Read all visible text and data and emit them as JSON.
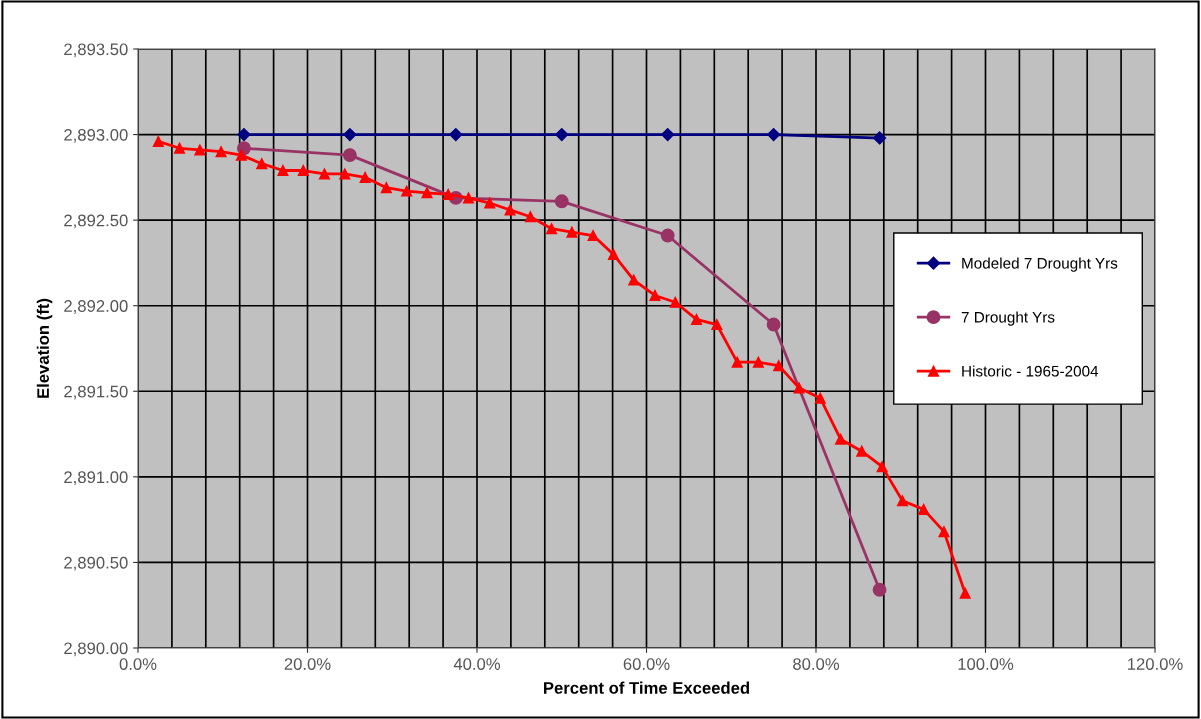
{
  "chart_data": {
    "type": "line",
    "xlabel": "Percent of Time Exceeded",
    "ylabel": "Elevation (ft)",
    "xlim": [
      0,
      120
    ],
    "ylim": [
      2890,
      2893.5
    ],
    "xticks": [
      {
        "value": 0,
        "label": "0.0%"
      },
      {
        "value": 4,
        "label": null
      },
      {
        "value": 8,
        "label": null
      },
      {
        "value": 12,
        "label": null
      },
      {
        "value": 16,
        "label": null
      },
      {
        "value": 20,
        "label": "20.0%"
      },
      {
        "value": 24,
        "label": null
      },
      {
        "value": 28,
        "label": null
      },
      {
        "value": 32,
        "label": null
      },
      {
        "value": 36,
        "label": null
      },
      {
        "value": 40,
        "label": "40.0%"
      },
      {
        "value": 44,
        "label": null
      },
      {
        "value": 48,
        "label": null
      },
      {
        "value": 52,
        "label": null
      },
      {
        "value": 56,
        "label": null
      },
      {
        "value": 60,
        "label": "60.0%"
      },
      {
        "value": 64,
        "label": null
      },
      {
        "value": 68,
        "label": null
      },
      {
        "value": 72,
        "label": null
      },
      {
        "value": 76,
        "label": null
      },
      {
        "value": 80,
        "label": "80.0%"
      },
      {
        "value": 84,
        "label": null
      },
      {
        "value": 88,
        "label": null
      },
      {
        "value": 92,
        "label": null
      },
      {
        "value": 96,
        "label": null
      },
      {
        "value": 100,
        "label": "100.0%"
      },
      {
        "value": 104,
        "label": null
      },
      {
        "value": 108,
        "label": null
      },
      {
        "value": 112,
        "label": null
      },
      {
        "value": 116,
        "label": null
      },
      {
        "value": 120,
        "label": "120.0%"
      }
    ],
    "yticks": [
      {
        "value": 2890,
        "label": "2,890.00"
      },
      {
        "value": 2890.5,
        "label": "2,890.50"
      },
      {
        "value": 2891,
        "label": "2,891.00"
      },
      {
        "value": 2891.5,
        "label": "2,891.50"
      },
      {
        "value": 2892,
        "label": "2,892.00"
      },
      {
        "value": 2892.5,
        "label": "2,892.50"
      },
      {
        "value": 2893,
        "label": "2,893.00"
      },
      {
        "value": 2893.5,
        "label": "2,893.50"
      }
    ],
    "grid": true,
    "legend": "right",
    "line_style": "solid",
    "series": [
      {
        "name": "Modeled 7 Drought Yrs",
        "color": "#000080",
        "marker": "diamond",
        "x": [
          12.5,
          25,
          37.5,
          50,
          62.5,
          75,
          87.5
        ],
        "values": [
          2893.0,
          2893.0,
          2893.0,
          2893.0,
          2893.0,
          2893.0,
          2892.98
        ]
      },
      {
        "name": "7 Drought Yrs",
        "color": "#993366",
        "marker": "circle",
        "x": [
          12.5,
          25,
          37.5,
          50,
          62.5,
          75,
          87.5
        ],
        "values": [
          2892.92,
          2892.88,
          2892.63,
          2892.61,
          2892.41,
          2891.89,
          2890.34
        ]
      },
      {
        "name": "Historic - 1965-2004",
        "color": "#ff0000",
        "marker": "triangle",
        "x": [
          2.4,
          4.9,
          7.3,
          9.8,
          12.2,
          14.6,
          17.1,
          19.5,
          22.0,
          24.4,
          26.8,
          29.3,
          31.7,
          34.1,
          36.6,
          39.0,
          41.5,
          43.9,
          46.3,
          48.8,
          51.2,
          53.7,
          56.1,
          58.5,
          61.0,
          63.4,
          65.9,
          68.3,
          70.7,
          73.2,
          75.6,
          78.0,
          80.5,
          82.9,
          85.4,
          87.8,
          90.2,
          92.7,
          95.1,
          97.6
        ],
        "values": [
          2892.96,
          2892.92,
          2892.91,
          2892.9,
          2892.88,
          2892.83,
          2892.79,
          2892.79,
          2892.77,
          2892.77,
          2892.75,
          2892.69,
          2892.67,
          2892.66,
          2892.65,
          2892.63,
          2892.6,
          2892.56,
          2892.52,
          2892.45,
          2892.43,
          2892.41,
          2892.3,
          2892.15,
          2892.06,
          2892.02,
          2891.92,
          2891.89,
          2891.67,
          2891.67,
          2891.65,
          2891.52,
          2891.46,
          2891.22,
          2891.15,
          2891.06,
          2890.86,
          2890.81,
          2890.68,
          2890.32
        ]
      }
    ]
  }
}
